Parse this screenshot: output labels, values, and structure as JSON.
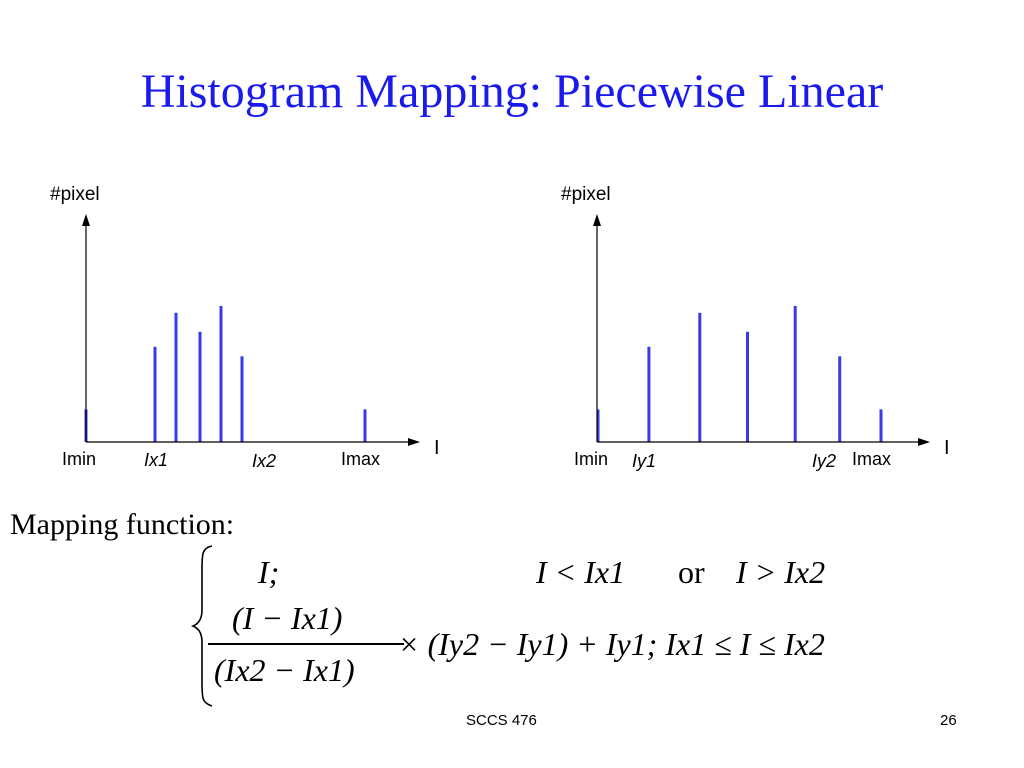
{
  "title": "Histogram Mapping: Piecewise Linear",
  "charts": {
    "left": {
      "ylabel": "#pixel",
      "xlabel": "I",
      "ticks": [
        "Imin",
        "Ix1",
        "Ix2",
        "Imax"
      ]
    },
    "right": {
      "ylabel": "#pixel",
      "xlabel": "I",
      "ticks": [
        "Imin",
        "Iy1",
        "Iy2",
        "Imax"
      ]
    }
  },
  "chart_data": [
    {
      "type": "bar",
      "x": [
        0,
        0.23,
        0.3,
        0.38,
        0.45,
        0.52,
        0.93
      ],
      "values": [
        0.24,
        0.7,
        0.95,
        0.81,
        1.0,
        0.63,
        0.24
      ],
      "xlabel": "I",
      "ylabel": "#pixel",
      "ticks": [
        "Imin",
        "Ix1",
        "Ix2",
        "Imax"
      ]
    },
    {
      "type": "bar",
      "x": [
        0,
        0.16,
        0.32,
        0.47,
        0.62,
        0.76,
        0.89
      ],
      "values": [
        0.24,
        0.7,
        0.95,
        0.81,
        1.0,
        0.63,
        0.24
      ],
      "xlabel": "I",
      "ylabel": "#pixel",
      "ticks": [
        "Imin",
        "Iy1",
        "Iy2",
        "Imax"
      ]
    }
  ],
  "mapping": {
    "label": "Mapping function:",
    "case1": {
      "expr": "I;",
      "cond_a": "I < Ix1",
      "or": "or",
      "cond_b": "I > Ix2"
    },
    "case2": {
      "num": "(I − Ix1)",
      "den": "(Ix2 − Ix1)",
      "rest": "× (Iy2 − Iy1) + Iy1; Ix1 ≤ I ≤ Ix2"
    }
  },
  "footer": {
    "course": "SCCS 476",
    "page": "26"
  },
  "colors": {
    "title": "#1a1aee",
    "bars": "#3a3ae6",
    "axis": "#000000"
  }
}
